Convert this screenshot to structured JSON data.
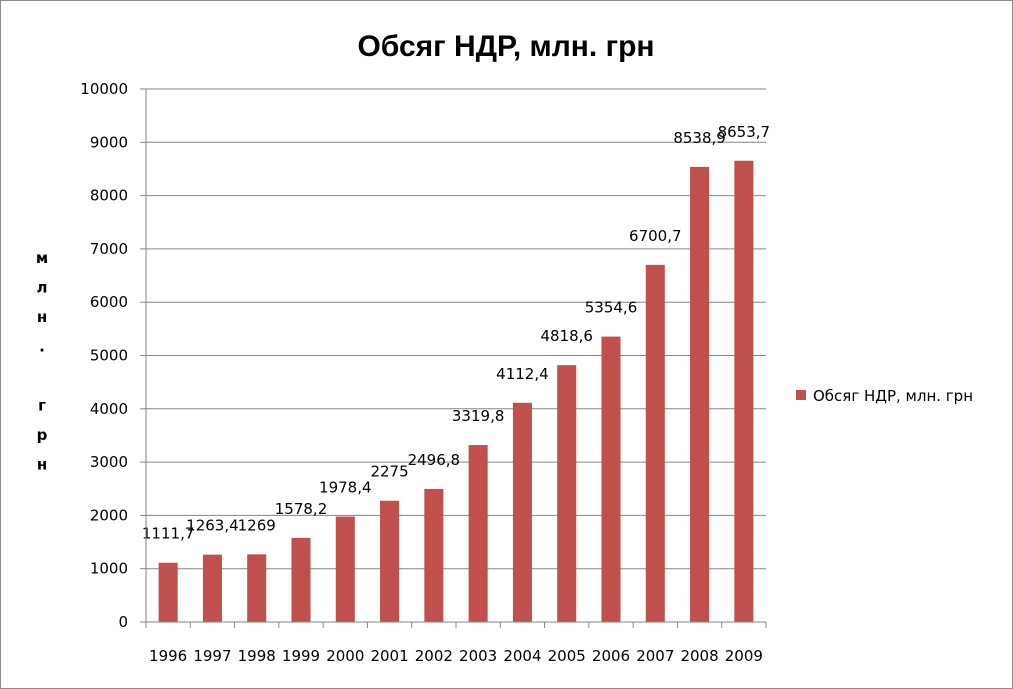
{
  "chart_data": {
    "type": "bar",
    "title": "Обсяг НДР, млн. грн",
    "ylabel": "млн. грн",
    "xlabel": "",
    "categories": [
      "1996",
      "1997",
      "1998",
      "1999",
      "2000",
      "2001",
      "2002",
      "2003",
      "2004",
      "2005",
      "2006",
      "2007",
      "2008",
      "2009"
    ],
    "series": [
      {
        "name": "Обсяг НДР, млн. грн",
        "values": [
          1111.7,
          1263.4,
          1269,
          1578.2,
          1978.4,
          2275,
          2496.8,
          3319.8,
          4112.4,
          4818.6,
          5354.6,
          6700.7,
          8538.9,
          8653.7
        ],
        "labels": [
          "1111,7",
          "1263,4",
          "1269",
          "1578,2",
          "1978,4",
          "2275",
          "2496,8",
          "3319,8",
          "4112,4",
          "4818,6",
          "5354,6",
          "6700,7",
          "8538,9",
          "8653,7"
        ],
        "color": "#c0504d"
      }
    ],
    "ylim": [
      0,
      10000
    ],
    "yticks": [
      "0",
      "1000",
      "2000",
      "3000",
      "4000",
      "5000",
      "6000",
      "7000",
      "8000",
      "9000",
      "10000"
    ],
    "grid": true,
    "legend_position": "right"
  }
}
